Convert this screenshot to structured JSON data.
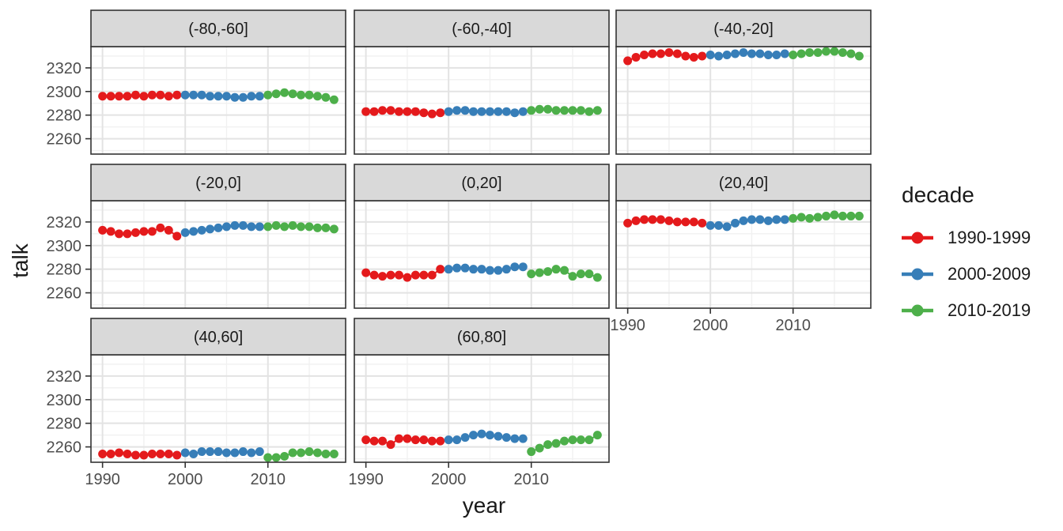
{
  "chart_data": {
    "type": "scatter",
    "title": "",
    "xlabel": "year",
    "ylabel": "talk",
    "grid": true,
    "xlim": [
      1988.6,
      2019.4
    ],
    "ylim": [
      2247,
      2338
    ],
    "x_ticks": [
      1990,
      2000,
      2010
    ],
    "y_ticks": [
      2320,
      2300,
      2280,
      2260
    ],
    "x_minor_ticks": [
      1995,
      2005,
      2015
    ],
    "y_minor_ticks": [
      2250,
      2270,
      2290,
      2310,
      2330
    ],
    "legend": {
      "title": "decade",
      "position": "right",
      "entries": [
        {
          "label": "1990-1999",
          "color": "#E41A1C"
        },
        {
          "label": "2000-2009",
          "color": "#377EB8"
        },
        {
          "label": "2010-2019",
          "color": "#4DAF4A"
        }
      ]
    },
    "decades": [
      {
        "label": "1990-1999",
        "color": "#E41A1C",
        "years": [
          1990,
          1991,
          1992,
          1993,
          1994,
          1995,
          1996,
          1997,
          1998,
          1999
        ]
      },
      {
        "label": "2000-2009",
        "color": "#377EB8",
        "years": [
          2000,
          2001,
          2002,
          2003,
          2004,
          2005,
          2006,
          2007,
          2008,
          2009
        ]
      },
      {
        "label": "2010-2019",
        "color": "#4DAF4A",
        "years": [
          2010,
          2011,
          2012,
          2013,
          2014,
          2015,
          2016,
          2017,
          2018
        ]
      }
    ],
    "facets": [
      {
        "label": "(-80,-60]",
        "series": [
          {
            "decade": "1990-1999",
            "values": [
              2296,
              2296,
              2296,
              2296,
              2297,
              2296,
              2297,
              2297,
              2296,
              2297
            ]
          },
          {
            "decade": "2000-2009",
            "values": [
              2297,
              2297,
              2297,
              2296,
              2296,
              2296,
              2295,
              2295,
              2296,
              2296
            ]
          },
          {
            "decade": "2010-2019",
            "values": [
              2297,
              2298,
              2299,
              2298,
              2297,
              2297,
              2296,
              2295,
              2293
            ]
          }
        ]
      },
      {
        "label": "(-60,-40]",
        "series": [
          {
            "decade": "1990-1999",
            "values": [
              2283,
              2283,
              2284,
              2284,
              2283,
              2283,
              2283,
              2282,
              2281,
              2282
            ]
          },
          {
            "decade": "2000-2009",
            "values": [
              2283,
              2284,
              2284,
              2283,
              2283,
              2283,
              2283,
              2283,
              2282,
              2283
            ]
          },
          {
            "decade": "2010-2019",
            "values": [
              2284,
              2285,
              2285,
              2284,
              2284,
              2284,
              2284,
              2283,
              2284
            ]
          }
        ]
      },
      {
        "label": "(-40,-20]",
        "series": [
          {
            "decade": "1990-1999",
            "values": [
              2326,
              2329,
              2331,
              2332,
              2332,
              2333,
              2332,
              2330,
              2329,
              2330
            ]
          },
          {
            "decade": "2000-2009",
            "values": [
              2331,
              2330,
              2331,
              2332,
              2333,
              2332,
              2332,
              2331,
              2331,
              2332
            ]
          },
          {
            "decade": "2010-2019",
            "values": [
              2331,
              2332,
              2333,
              2333,
              2334,
              2334,
              2333,
              2332,
              2330
            ]
          }
        ]
      },
      {
        "label": "(-20,0]",
        "series": [
          {
            "decade": "1990-1999",
            "values": [
              2313,
              2312,
              2310,
              2310,
              2311,
              2312,
              2312,
              2315,
              2313,
              2308
            ]
          },
          {
            "decade": "2000-2009",
            "values": [
              2311,
              2312,
              2313,
              2314,
              2315,
              2316,
              2317,
              2317,
              2316,
              2316
            ]
          },
          {
            "decade": "2010-2019",
            "values": [
              2316,
              2317,
              2316,
              2317,
              2316,
              2316,
              2315,
              2315,
              2314
            ]
          }
        ]
      },
      {
        "label": "(0,20]",
        "series": [
          {
            "decade": "1990-1999",
            "values": [
              2277,
              2275,
              2274,
              2275,
              2275,
              2273,
              2275,
              2275,
              2275,
              2280
            ]
          },
          {
            "decade": "2000-2009",
            "values": [
              2280,
              2281,
              2281,
              2280,
              2280,
              2279,
              2279,
              2280,
              2282,
              2282
            ]
          },
          {
            "decade": "2010-2019",
            "values": [
              2276,
              2277,
              2278,
              2280,
              2279,
              2274,
              2276,
              2276,
              2273
            ]
          }
        ]
      },
      {
        "label": "(20,40]",
        "series": [
          {
            "decade": "1990-1999",
            "values": [
              2319,
              2321,
              2322,
              2322,
              2322,
              2321,
              2320,
              2320,
              2320,
              2319
            ]
          },
          {
            "decade": "2000-2009",
            "values": [
              2317,
              2317,
              2316,
              2319,
              2321,
              2322,
              2322,
              2321,
              2322,
              2322
            ]
          },
          {
            "decade": "2010-2019",
            "values": [
              2323,
              2324,
              2323,
              2324,
              2325,
              2326,
              2325,
              2325,
              2325
            ]
          }
        ]
      },
      {
        "label": "(40,60]",
        "series": [
          {
            "decade": "1990-1999",
            "values": [
              2254,
              2254,
              2255,
              2254,
              2253,
              2253,
              2254,
              2254,
              2254,
              2253
            ]
          },
          {
            "decade": "2000-2009",
            "values": [
              2255,
              2254,
              2256,
              2256,
              2256,
              2255,
              2255,
              2256,
              2255,
              2256
            ]
          },
          {
            "decade": "2010-2019",
            "values": [
              2251,
              2251,
              2252,
              2255,
              2255,
              2256,
              2255,
              2254,
              2254
            ]
          }
        ]
      },
      {
        "label": "(60,80]",
        "series": [
          {
            "decade": "1990-1999",
            "values": [
              2266,
              2265,
              2265,
              2262,
              2267,
              2267,
              2266,
              2266,
              2265,
              2265
            ]
          },
          {
            "decade": "2000-2009",
            "values": [
              2266,
              2266,
              2268,
              2270,
              2271,
              2270,
              2269,
              2268,
              2267,
              2267
            ]
          },
          {
            "decade": "2010-2019",
            "values": [
              2256,
              2259,
              2262,
              2263,
              2265,
              2266,
              2266,
              2266,
              2270
            ]
          }
        ]
      }
    ],
    "style": {
      "strip_fill": "#D9D9D9",
      "strip_text_color": "#1a1a1a",
      "panel_border": "#333333",
      "grid_major": "#E3E3E3",
      "grid_minor": "#F1F1F1",
      "tick_mark_color": "#333333",
      "tick_label_color": "#4D4D4D",
      "point_radius": 5.5
    }
  }
}
